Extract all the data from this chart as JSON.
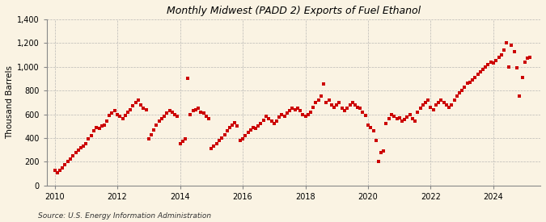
{
  "title": "Monthly Midwest (PADD 2) Exports of Fuel Ethanol",
  "ylabel": "Thousand Barrels",
  "source": "Source: U.S. Energy Information Administration",
  "marker_color": "#CC0000",
  "marker": "s",
  "marker_size": 10,
  "background_color": "#FAF3E3",
  "plot_bg_color": "#FAF3E3",
  "grid_color": "#AAAAAA",
  "ylim": [
    0,
    1400
  ],
  "yticks": [
    0,
    200,
    400,
    600,
    800,
    1000,
    1200,
    1400
  ],
  "ytick_labels": [
    "0",
    "200",
    "400",
    "600",
    "800",
    "1,000",
    "1,200",
    "1,400"
  ],
  "xlim_start": 2009.75,
  "xlim_end": 2025.5,
  "xticks": [
    2010,
    2012,
    2014,
    2016,
    2018,
    2020,
    2022,
    2024
  ],
  "data": [
    [
      2010.0,
      130
    ],
    [
      2010.08,
      110
    ],
    [
      2010.17,
      125
    ],
    [
      2010.25,
      145
    ],
    [
      2010.33,
      175
    ],
    [
      2010.42,
      200
    ],
    [
      2010.5,
      220
    ],
    [
      2010.58,
      250
    ],
    [
      2010.67,
      280
    ],
    [
      2010.75,
      300
    ],
    [
      2010.83,
      320
    ],
    [
      2010.92,
      335
    ],
    [
      2011.0,
      355
    ],
    [
      2011.08,
      390
    ],
    [
      2011.17,
      420
    ],
    [
      2011.25,
      460
    ],
    [
      2011.33,
      490
    ],
    [
      2011.42,
      480
    ],
    [
      2011.5,
      500
    ],
    [
      2011.58,
      510
    ],
    [
      2011.67,
      540
    ],
    [
      2011.75,
      590
    ],
    [
      2011.83,
      610
    ],
    [
      2011.92,
      630
    ],
    [
      2012.0,
      600
    ],
    [
      2012.08,
      580
    ],
    [
      2012.17,
      560
    ],
    [
      2012.25,
      590
    ],
    [
      2012.33,
      620
    ],
    [
      2012.42,
      640
    ],
    [
      2012.5,
      670
    ],
    [
      2012.58,
      700
    ],
    [
      2012.67,
      720
    ],
    [
      2012.75,
      680
    ],
    [
      2012.83,
      650
    ],
    [
      2012.92,
      640
    ],
    [
      2013.0,
      390
    ],
    [
      2013.08,
      430
    ],
    [
      2013.17,
      470
    ],
    [
      2013.25,
      510
    ],
    [
      2013.33,
      540
    ],
    [
      2013.42,
      560
    ],
    [
      2013.5,
      580
    ],
    [
      2013.58,
      610
    ],
    [
      2013.67,
      630
    ],
    [
      2013.75,
      620
    ],
    [
      2013.83,
      600
    ],
    [
      2013.92,
      580
    ],
    [
      2014.0,
      350
    ],
    [
      2014.08,
      370
    ],
    [
      2014.17,
      395
    ],
    [
      2014.25,
      900
    ],
    [
      2014.33,
      600
    ],
    [
      2014.42,
      630
    ],
    [
      2014.5,
      640
    ],
    [
      2014.58,
      650
    ],
    [
      2014.67,
      620
    ],
    [
      2014.75,
      610
    ],
    [
      2014.83,
      580
    ],
    [
      2014.92,
      560
    ],
    [
      2015.0,
      310
    ],
    [
      2015.08,
      330
    ],
    [
      2015.17,
      355
    ],
    [
      2015.25,
      380
    ],
    [
      2015.33,
      400
    ],
    [
      2015.42,
      430
    ],
    [
      2015.5,
      460
    ],
    [
      2015.58,
      490
    ],
    [
      2015.67,
      510
    ],
    [
      2015.75,
      530
    ],
    [
      2015.83,
      500
    ],
    [
      2015.92,
      380
    ],
    [
      2016.0,
      390
    ],
    [
      2016.08,
      420
    ],
    [
      2016.17,
      450
    ],
    [
      2016.25,
      470
    ],
    [
      2016.33,
      490
    ],
    [
      2016.42,
      480
    ],
    [
      2016.5,
      500
    ],
    [
      2016.58,
      520
    ],
    [
      2016.67,
      550
    ],
    [
      2016.75,
      580
    ],
    [
      2016.83,
      560
    ],
    [
      2016.92,
      540
    ],
    [
      2017.0,
      520
    ],
    [
      2017.08,
      545
    ],
    [
      2017.17,
      575
    ],
    [
      2017.25,
      600
    ],
    [
      2017.33,
      580
    ],
    [
      2017.42,
      610
    ],
    [
      2017.5,
      630
    ],
    [
      2017.58,
      650
    ],
    [
      2017.67,
      640
    ],
    [
      2017.75,
      650
    ],
    [
      2017.83,
      630
    ],
    [
      2017.92,
      600
    ],
    [
      2018.0,
      580
    ],
    [
      2018.08,
      600
    ],
    [
      2018.17,
      620
    ],
    [
      2018.25,
      660
    ],
    [
      2018.33,
      700
    ],
    [
      2018.42,
      720
    ],
    [
      2018.5,
      750
    ],
    [
      2018.58,
      855
    ],
    [
      2018.67,
      700
    ],
    [
      2018.75,
      720
    ],
    [
      2018.83,
      680
    ],
    [
      2018.92,
      660
    ],
    [
      2019.0,
      680
    ],
    [
      2019.08,
      700
    ],
    [
      2019.17,
      650
    ],
    [
      2019.25,
      630
    ],
    [
      2019.33,
      650
    ],
    [
      2019.42,
      680
    ],
    [
      2019.5,
      700
    ],
    [
      2019.58,
      680
    ],
    [
      2019.67,
      660
    ],
    [
      2019.75,
      650
    ],
    [
      2019.83,
      620
    ],
    [
      2019.92,
      590
    ],
    [
      2020.0,
      510
    ],
    [
      2020.08,
      490
    ],
    [
      2020.17,
      460
    ],
    [
      2020.25,
      380
    ],
    [
      2020.33,
      200
    ],
    [
      2020.42,
      280
    ],
    [
      2020.5,
      290
    ],
    [
      2020.58,
      520
    ],
    [
      2020.67,
      560
    ],
    [
      2020.75,
      600
    ],
    [
      2020.83,
      580
    ],
    [
      2020.92,
      560
    ],
    [
      2021.0,
      570
    ],
    [
      2021.08,
      545
    ],
    [
      2021.17,
      555
    ],
    [
      2021.25,
      575
    ],
    [
      2021.33,
      600
    ],
    [
      2021.42,
      560
    ],
    [
      2021.5,
      540
    ],
    [
      2021.58,
      620
    ],
    [
      2021.67,
      650
    ],
    [
      2021.75,
      680
    ],
    [
      2021.83,
      700
    ],
    [
      2021.92,
      720
    ],
    [
      2022.0,
      660
    ],
    [
      2022.08,
      640
    ],
    [
      2022.17,
      680
    ],
    [
      2022.25,
      700
    ],
    [
      2022.33,
      720
    ],
    [
      2022.42,
      700
    ],
    [
      2022.5,
      680
    ],
    [
      2022.58,
      660
    ],
    [
      2022.67,
      680
    ],
    [
      2022.75,
      720
    ],
    [
      2022.83,
      750
    ],
    [
      2022.92,
      780
    ],
    [
      2023.0,
      800
    ],
    [
      2023.08,
      830
    ],
    [
      2023.17,
      860
    ],
    [
      2023.25,
      870
    ],
    [
      2023.33,
      890
    ],
    [
      2023.42,
      910
    ],
    [
      2023.5,
      940
    ],
    [
      2023.58,
      960
    ],
    [
      2023.67,
      980
    ],
    [
      2023.75,
      1000
    ],
    [
      2023.83,
      1020
    ],
    [
      2023.92,
      1040
    ],
    [
      2024.0,
      1030
    ],
    [
      2024.08,
      1050
    ],
    [
      2024.17,
      1080
    ],
    [
      2024.25,
      1100
    ],
    [
      2024.33,
      1140
    ],
    [
      2024.42,
      1200
    ],
    [
      2024.5,
      1000
    ],
    [
      2024.58,
      1180
    ],
    [
      2024.67,
      1130
    ],
    [
      2024.75,
      990
    ],
    [
      2024.83,
      750
    ],
    [
      2024.92,
      910
    ],
    [
      2025.0,
      1040
    ],
    [
      2025.08,
      1070
    ],
    [
      2025.17,
      1080
    ]
  ]
}
